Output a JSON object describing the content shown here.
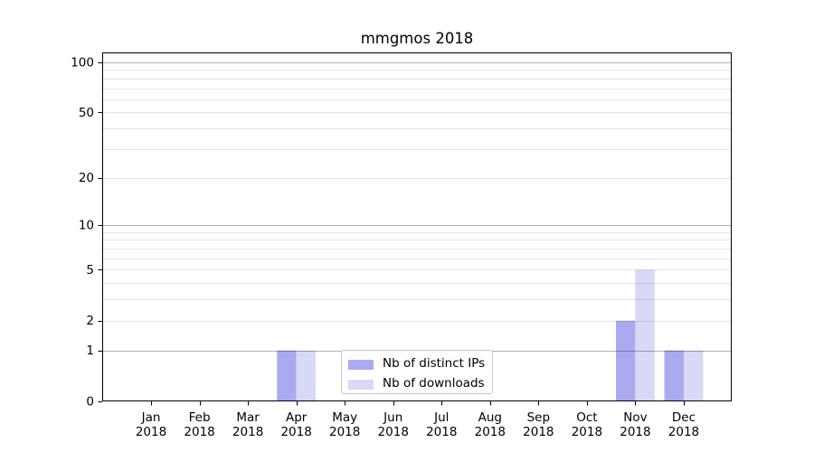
{
  "title": "mmgmos 2018",
  "colors": {
    "bar_distinct_ips": "#aaaaee",
    "bar_downloads": "#d8d8f7",
    "grid_major": "rgba(0,0,0,0.30)",
    "grid_minor": "rgba(0,0,0,0.10)",
    "axis": "#000000",
    "legend_border": "#c8c8c8",
    "background": "#ffffff"
  },
  "legend": {
    "items": [
      {
        "label": "Nb of distinct IPs",
        "color": "#aaaaee"
      },
      {
        "label": "Nb of downloads",
        "color": "#d8d8f7"
      }
    ]
  },
  "chart_data": {
    "type": "bar",
    "title": "mmgmos 2018",
    "xlabel": "",
    "ylabel": "",
    "categories": [
      "Jan 2018",
      "Feb 2018",
      "Mar 2018",
      "Apr 2018",
      "May 2018",
      "Jun 2018",
      "Jul 2018",
      "Aug 2018",
      "Sep 2018",
      "Oct 2018",
      "Nov 2018",
      "Dec 2018"
    ],
    "series": [
      {
        "name": "Nb of distinct IPs",
        "color": "#aaaaee",
        "values": [
          0,
          0,
          0,
          1,
          0,
          0,
          0,
          0,
          0,
          0,
          2,
          1
        ]
      },
      {
        "name": "Nb of downloads",
        "color": "#d8d8f7",
        "values": [
          0,
          0,
          0,
          1,
          0,
          0,
          0,
          0,
          0,
          0,
          5,
          1
        ]
      }
    ],
    "y_scale": "log10(1+v)",
    "y_axis_top_value": 114.6,
    "y_tick_values": [
      0,
      1,
      2,
      5,
      10,
      20,
      50,
      100
    ],
    "y_major_grid_values": [
      1,
      10,
      100
    ],
    "y_minor_grid_values": [
      2,
      3,
      4,
      5,
      6,
      7,
      8,
      9,
      20,
      30,
      40,
      50,
      60,
      70,
      80,
      90
    ],
    "grid": true,
    "legend_position": "lower center"
  }
}
